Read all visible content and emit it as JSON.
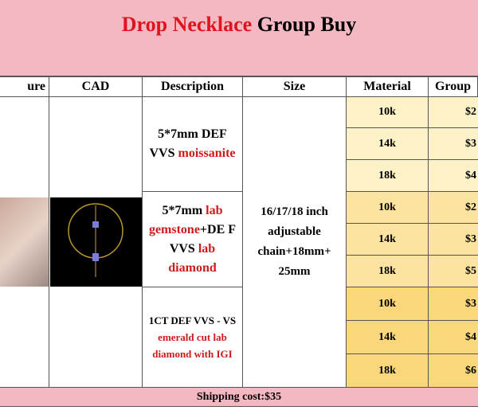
{
  "title": [
    {
      "text": "Drop Necklace",
      "color": "#e0141e"
    },
    {
      "text": " Group  Buy",
      "color": "#000000"
    }
  ],
  "header": [
    "ure",
    "CAD",
    "Description",
    "Size",
    "Material",
    "Group"
  ],
  "descriptions": [
    [
      {
        "text": "5*7mm DEF VVS ",
        "color": "#000000"
      },
      {
        "text": "moissanite",
        "color": "#d01a1a"
      }
    ],
    [
      {
        "text": "5*7mm ",
        "color": "#000000"
      },
      {
        "text": "lab gemstone",
        "color": "#d01a1a"
      },
      {
        "text": "+DE F  VVS ",
        "color": "#000000"
      },
      {
        "text": "lab diamond",
        "color": "#d01a1a"
      }
    ],
    [
      {
        "text": "1CT DEF VVS - VS ",
        "color": "#000000"
      },
      {
        "text": "emerald cut lab diamond with IGI",
        "color": "#d01a1a"
      }
    ]
  ],
  "size": "16/17/18 inch adjustable chain+18mm+ 25mm",
  "rows": [
    {
      "material": "10k",
      "price": "$2"
    },
    {
      "material": "14k",
      "price": "$3"
    },
    {
      "material": "18k",
      "price": "$4"
    },
    {
      "material": "10k",
      "price": "$2"
    },
    {
      "material": "14k",
      "price": "$3"
    },
    {
      "material": "18k",
      "price": "$5"
    },
    {
      "material": "10k",
      "price": "$3"
    },
    {
      "material": "14k",
      "price": "$4"
    },
    {
      "material": "18k",
      "price": "$6"
    }
  ],
  "footer": "Shipping cost:$35"
}
